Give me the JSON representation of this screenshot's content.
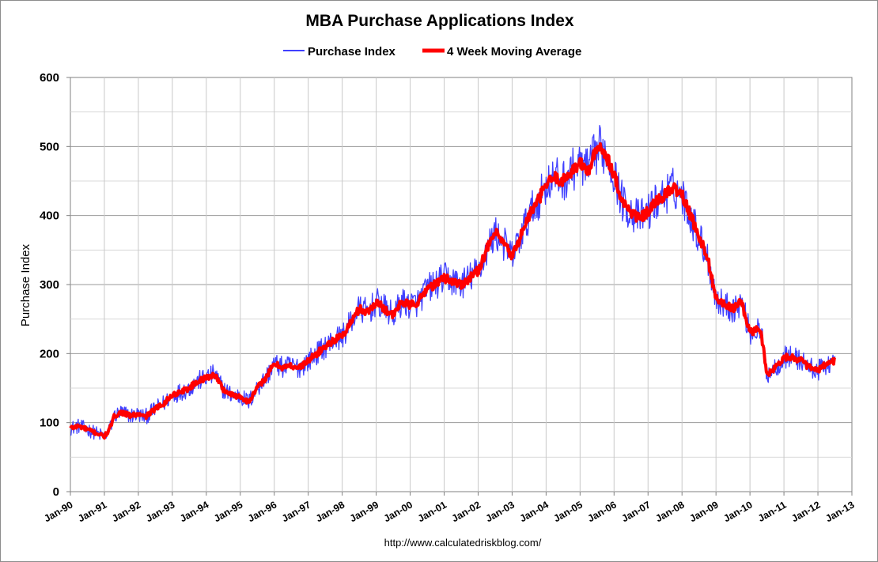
{
  "chart_data": {
    "type": "line",
    "title": "MBA Purchase Applications Index",
    "xlabel": "",
    "ylabel": "Purchase Index",
    "ylim": [
      0,
      600
    ],
    "yticks": [
      0,
      100,
      200,
      300,
      400,
      500,
      600
    ],
    "xlim": [
      1990.0,
      2013.0
    ],
    "xtick_labels": [
      "Jan-90",
      "Jan-91",
      "Jan-92",
      "Jan-93",
      "Jan-94",
      "Jan-95",
      "Jan-96",
      "Jan-97",
      "Jan-98",
      "Jan-99",
      "Jan-00",
      "Jan-01",
      "Jan-02",
      "Jan-03",
      "Jan-04",
      "Jan-05",
      "Jan-06",
      "Jan-07",
      "Jan-08",
      "Jan-09",
      "Jan-10",
      "Jan-11",
      "Jan-12",
      "Jan-13"
    ],
    "grid": true,
    "legend_position": "top-center",
    "source_note": "http://www.calculatedriskblog.com/",
    "series": [
      {
        "name": "Purchase Index",
        "color": "#4040ff",
        "style": "thin",
        "noise": 14,
        "x": [
          1990.0,
          1990.25,
          1990.5,
          1990.75,
          1991.0,
          1991.15,
          1991.3,
          1991.5,
          1991.75,
          1992.0,
          1992.2,
          1992.5,
          1992.75,
          1993.0,
          1993.25,
          1993.5,
          1993.75,
          1994.0,
          1994.25,
          1994.5,
          1994.75,
          1995.0,
          1995.25,
          1995.5,
          1995.75,
          1996.0,
          1996.25,
          1996.5,
          1996.75,
          1997.0,
          1997.25,
          1997.5,
          1997.75,
          1998.0,
          1998.25,
          1998.5,
          1998.75,
          1999.0,
          1999.25,
          1999.5,
          1999.75,
          2000.0,
          2000.25,
          2000.5,
          2000.75,
          2001.0,
          2001.25,
          2001.5,
          2001.75,
          2002.0,
          2002.25,
          2002.5,
          2002.75,
          2003.0,
          2003.25,
          2003.5,
          2003.75,
          2004.0,
          2004.25,
          2004.5,
          2004.75,
          2005.0,
          2005.25,
          2005.4,
          2005.6,
          2005.75,
          2006.0,
          2006.25,
          2006.5,
          2006.75,
          2007.0,
          2007.25,
          2007.5,
          2007.75,
          2008.0,
          2008.25,
          2008.5,
          2008.75,
          2009.0,
          2009.25,
          2009.5,
          2009.75,
          2010.0,
          2010.2,
          2010.33,
          2010.5,
          2010.75,
          2011.0,
          2011.25,
          2011.5,
          2011.75,
          2012.0,
          2012.25,
          2012.5
        ],
        "values": [
          92,
          95,
          90,
          85,
          80,
          90,
          110,
          115,
          110,
          112,
          108,
          120,
          128,
          140,
          145,
          150,
          160,
          165,
          170,
          148,
          140,
          138,
          130,
          150,
          165,
          185,
          180,
          182,
          180,
          190,
          200,
          210,
          220,
          225,
          245,
          265,
          260,
          275,
          265,
          255,
          275,
          270,
          275,
          295,
          300,
          310,
          305,
          300,
          310,
          320,
          350,
          375,
          360,
          340,
          370,
          400,
          420,
          445,
          455,
          450,
          465,
          475,
          465,
          485,
          500,
          490,
          460,
          420,
          405,
          395,
          405,
          420,
          430,
          440,
          430,
          400,
          370,
          340,
          280,
          270,
          265,
          275,
          230,
          235,
          230,
          170,
          180,
          195,
          195,
          190,
          180,
          175,
          185,
          190
        ]
      },
      {
        "name": "4 Week Moving Average",
        "color": "#ff0000",
        "style": "thick",
        "noise": 4,
        "x": [
          1990.0,
          1990.25,
          1990.5,
          1990.75,
          1991.0,
          1991.15,
          1991.3,
          1991.5,
          1991.75,
          1992.0,
          1992.2,
          1992.5,
          1992.75,
          1993.0,
          1993.25,
          1993.5,
          1993.75,
          1994.0,
          1994.25,
          1994.5,
          1994.75,
          1995.0,
          1995.25,
          1995.5,
          1995.75,
          1996.0,
          1996.25,
          1996.5,
          1996.75,
          1997.0,
          1997.25,
          1997.5,
          1997.75,
          1998.0,
          1998.25,
          1998.5,
          1998.75,
          1999.0,
          1999.25,
          1999.5,
          1999.75,
          2000.0,
          2000.25,
          2000.5,
          2000.75,
          2001.0,
          2001.25,
          2001.5,
          2001.75,
          2002.0,
          2002.25,
          2002.5,
          2002.75,
          2003.0,
          2003.25,
          2003.5,
          2003.75,
          2004.0,
          2004.25,
          2004.5,
          2004.75,
          2005.0,
          2005.25,
          2005.4,
          2005.6,
          2005.75,
          2006.0,
          2006.25,
          2006.5,
          2006.75,
          2007.0,
          2007.25,
          2007.5,
          2007.75,
          2008.0,
          2008.25,
          2008.5,
          2008.75,
          2009.0,
          2009.25,
          2009.5,
          2009.75,
          2010.0,
          2010.2,
          2010.33,
          2010.5,
          2010.75,
          2011.0,
          2011.25,
          2011.5,
          2011.75,
          2012.0,
          2012.25,
          2012.5
        ],
        "values": [
          92,
          95,
          90,
          85,
          80,
          90,
          110,
          115,
          110,
          112,
          108,
          120,
          128,
          140,
          145,
          150,
          160,
          165,
          170,
          148,
          140,
          138,
          130,
          150,
          165,
          185,
          180,
          182,
          180,
          190,
          200,
          210,
          220,
          225,
          245,
          265,
          260,
          275,
          265,
          255,
          275,
          270,
          275,
          295,
          300,
          310,
          305,
          300,
          310,
          320,
          350,
          375,
          360,
          340,
          370,
          400,
          420,
          445,
          455,
          450,
          465,
          475,
          465,
          485,
          500,
          490,
          460,
          420,
          405,
          395,
          405,
          420,
          430,
          440,
          430,
          400,
          370,
          340,
          280,
          270,
          265,
          275,
          230,
          235,
          230,
          170,
          180,
          195,
          195,
          190,
          180,
          175,
          185,
          190
        ]
      }
    ]
  }
}
